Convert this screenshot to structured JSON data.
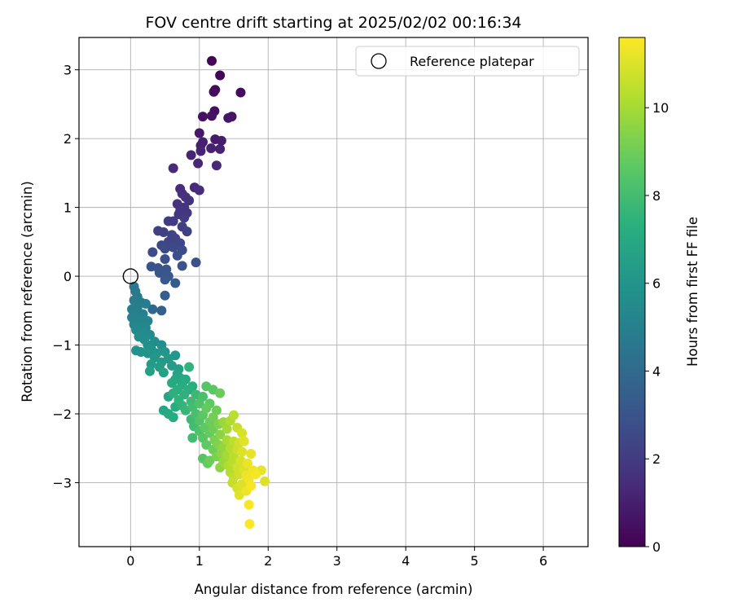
{
  "chart_data": {
    "type": "scatter",
    "title": "FOV centre drift starting at 2025/02/02 00:16:34",
    "xlabel": "Angular distance from reference (arcmin)",
    "ylabel": "Rotation from reference (arcmin)",
    "xlim": [
      -0.75,
      6.65
    ],
    "ylim": [
      -3.93,
      3.47
    ],
    "xticks": [
      0,
      1,
      2,
      3,
      4,
      5,
      6
    ],
    "yticks": [
      -3,
      -2,
      -1,
      0,
      1,
      2,
      3
    ],
    "grid": true,
    "legend": {
      "placement": "top-right",
      "entries": [
        "Reference platepar"
      ]
    },
    "reference_point": {
      "x": 0,
      "y": 0
    },
    "colorbar": {
      "label": "Hours from first FF file",
      "range": [
        0,
        11.6
      ],
      "ticks": [
        0,
        2,
        4,
        6,
        8,
        10
      ],
      "colormap": "viridis"
    },
    "points": [
      {
        "x": 1.18,
        "y": 3.13,
        "h": 0.1
      },
      {
        "x": 1.3,
        "y": 2.92,
        "h": 0.2
      },
      {
        "x": 1.23,
        "y": 2.71,
        "h": 0.3
      },
      {
        "x": 1.21,
        "y": 2.68,
        "h": 0.35
      },
      {
        "x": 1.6,
        "y": 2.67,
        "h": 0.4
      },
      {
        "x": 1.22,
        "y": 2.4,
        "h": 0.5
      },
      {
        "x": 1.05,
        "y": 2.32,
        "h": 0.55
      },
      {
        "x": 1.18,
        "y": 2.33,
        "h": 0.6
      },
      {
        "x": 1.47,
        "y": 2.32,
        "h": 0.65
      },
      {
        "x": 1.42,
        "y": 2.3,
        "h": 0.7
      },
      {
        "x": 1.0,
        "y": 2.08,
        "h": 0.8
      },
      {
        "x": 1.23,
        "y": 1.99,
        "h": 0.85
      },
      {
        "x": 1.32,
        "y": 1.97,
        "h": 0.9
      },
      {
        "x": 1.05,
        "y": 1.95,
        "h": 0.95
      },
      {
        "x": 1.02,
        "y": 1.9,
        "h": 1.0
      },
      {
        "x": 1.17,
        "y": 1.86,
        "h": 1.05
      },
      {
        "x": 1.3,
        "y": 1.85,
        "h": 1.1
      },
      {
        "x": 1.02,
        "y": 1.82,
        "h": 1.15
      },
      {
        "x": 0.88,
        "y": 1.76,
        "h": 1.2
      },
      {
        "x": 0.98,
        "y": 1.64,
        "h": 1.25
      },
      {
        "x": 1.25,
        "y": 1.61,
        "h": 1.3
      },
      {
        "x": 0.62,
        "y": 1.57,
        "h": 1.35
      },
      {
        "x": 0.93,
        "y": 1.29,
        "h": 1.4
      },
      {
        "x": 0.72,
        "y": 1.27,
        "h": 1.45
      },
      {
        "x": 1.0,
        "y": 1.25,
        "h": 1.5
      },
      {
        "x": 0.75,
        "y": 1.2,
        "h": 1.55
      },
      {
        "x": 0.8,
        "y": 1.15,
        "h": 1.6
      },
      {
        "x": 0.85,
        "y": 1.1,
        "h": 1.65
      },
      {
        "x": 0.68,
        "y": 1.05,
        "h": 1.7
      },
      {
        "x": 0.78,
        "y": 1.0,
        "h": 1.75
      },
      {
        "x": 0.72,
        "y": 0.95,
        "h": 1.8
      },
      {
        "x": 0.82,
        "y": 0.92,
        "h": 1.85
      },
      {
        "x": 0.7,
        "y": 0.9,
        "h": 1.9
      },
      {
        "x": 0.78,
        "y": 0.85,
        "h": 1.95
      },
      {
        "x": 0.62,
        "y": 0.8,
        "h": 2.0
      },
      {
        "x": 0.55,
        "y": 0.8,
        "h": 2.05
      },
      {
        "x": 0.75,
        "y": 0.72,
        "h": 2.1
      },
      {
        "x": 0.4,
        "y": 0.66,
        "h": 2.15
      },
      {
        "x": 0.48,
        "y": 0.64,
        "h": 2.2
      },
      {
        "x": 0.82,
        "y": 0.65,
        "h": 2.25
      },
      {
        "x": 0.6,
        "y": 0.6,
        "h": 2.3
      },
      {
        "x": 0.65,
        "y": 0.55,
        "h": 2.35
      },
      {
        "x": 0.55,
        "y": 0.5,
        "h": 2.4
      },
      {
        "x": 0.72,
        "y": 0.48,
        "h": 2.45
      },
      {
        "x": 0.45,
        "y": 0.45,
        "h": 2.5
      },
      {
        "x": 0.62,
        "y": 0.42,
        "h": 2.55
      },
      {
        "x": 0.5,
        "y": 0.4,
        "h": 2.6
      },
      {
        "x": 0.75,
        "y": 0.38,
        "h": 2.65
      },
      {
        "x": 0.32,
        "y": 0.35,
        "h": 2.7
      },
      {
        "x": 0.68,
        "y": 0.3,
        "h": 2.75
      },
      {
        "x": 0.5,
        "y": 0.25,
        "h": 2.8
      },
      {
        "x": 0.95,
        "y": 0.2,
        "h": 2.85
      },
      {
        "x": 0.75,
        "y": 0.15,
        "h": 2.9
      },
      {
        "x": 0.3,
        "y": 0.14,
        "h": 2.95
      },
      {
        "x": 0.4,
        "y": 0.12,
        "h": 3.0
      },
      {
        "x": 0.52,
        "y": 0.1,
        "h": 3.05
      },
      {
        "x": 0.42,
        "y": 0.05,
        "h": 3.1
      },
      {
        "x": 0.55,
        "y": 0.0,
        "h": 3.15
      },
      {
        "x": 0.5,
        "y": -0.05,
        "h": 3.2
      },
      {
        "x": 0.65,
        "y": -0.1,
        "h": 3.25
      },
      {
        "x": 0.05,
        "y": -0.15,
        "h": 4.6
      },
      {
        "x": 0.07,
        "y": -0.22,
        "h": 4.65
      },
      {
        "x": 0.5,
        "y": -0.28,
        "h": 3.4
      },
      {
        "x": 0.1,
        "y": -0.3,
        "h": 4.7
      },
      {
        "x": 0.05,
        "y": -0.35,
        "h": 4.75
      },
      {
        "x": 0.15,
        "y": -0.38,
        "h": 4.8
      },
      {
        "x": 0.22,
        "y": -0.4,
        "h": 4.85
      },
      {
        "x": 0.1,
        "y": -0.45,
        "h": 4.9
      },
      {
        "x": 0.02,
        "y": -0.48,
        "h": 4.95
      },
      {
        "x": 0.32,
        "y": -0.48,
        "h": 3.9
      },
      {
        "x": 0.45,
        "y": -0.5,
        "h": 3.6
      },
      {
        "x": 0.05,
        "y": -0.55,
        "h": 5.0
      },
      {
        "x": 0.18,
        "y": -0.55,
        "h": 5.05
      },
      {
        "x": 0.02,
        "y": -0.6,
        "h": 5.1
      },
      {
        "x": 0.12,
        "y": -0.62,
        "h": 5.15
      },
      {
        "x": 0.25,
        "y": -0.65,
        "h": 5.2
      },
      {
        "x": 0.05,
        "y": -0.7,
        "h": 5.25
      },
      {
        "x": 0.15,
        "y": -0.72,
        "h": 5.3
      },
      {
        "x": 0.22,
        "y": -0.75,
        "h": 5.35
      },
      {
        "x": 0.08,
        "y": -0.78,
        "h": 5.4
      },
      {
        "x": 0.18,
        "y": -0.82,
        "h": 5.45
      },
      {
        "x": 0.28,
        "y": -0.85,
        "h": 5.5
      },
      {
        "x": 0.12,
        "y": -0.88,
        "h": 5.55
      },
      {
        "x": 0.2,
        "y": -0.92,
        "h": 5.6
      },
      {
        "x": 0.35,
        "y": -0.95,
        "h": 5.65
      },
      {
        "x": 0.25,
        "y": -1.0,
        "h": 5.7
      },
      {
        "x": 0.45,
        "y": -1.0,
        "h": 5.75
      },
      {
        "x": 0.3,
        "y": -1.05,
        "h": 5.8
      },
      {
        "x": 0.08,
        "y": -1.08,
        "h": 5.85
      },
      {
        "x": 0.15,
        "y": -1.1,
        "h": 5.9
      },
      {
        "x": 0.25,
        "y": -1.12,
        "h": 5.95
      },
      {
        "x": 0.38,
        "y": -1.12,
        "h": 6.0
      },
      {
        "x": 0.5,
        "y": -1.1,
        "h": 6.05
      },
      {
        "x": 0.65,
        "y": -1.15,
        "h": 6.1
      },
      {
        "x": 0.35,
        "y": -1.18,
        "h": 6.15
      },
      {
        "x": 0.55,
        "y": -1.2,
        "h": 6.2
      },
      {
        "x": 0.45,
        "y": -1.25,
        "h": 6.25
      },
      {
        "x": 0.3,
        "y": -1.28,
        "h": 6.3
      },
      {
        "x": 0.6,
        "y": -1.3,
        "h": 6.35
      },
      {
        "x": 0.42,
        "y": -1.32,
        "h": 6.4
      },
      {
        "x": 0.85,
        "y": -1.32,
        "h": 7.5
      },
      {
        "x": 0.7,
        "y": -1.35,
        "h": 6.5
      },
      {
        "x": 0.28,
        "y": -1.38,
        "h": 6.55
      },
      {
        "x": 0.48,
        "y": -1.4,
        "h": 6.6
      },
      {
        "x": 0.68,
        "y": -1.42,
        "h": 6.7
      },
      {
        "x": 0.72,
        "y": -1.48,
        "h": 6.8
      },
      {
        "x": 0.65,
        "y": -1.5,
        "h": 6.9
      },
      {
        "x": 0.8,
        "y": -1.5,
        "h": 7.0
      },
      {
        "x": 0.6,
        "y": -1.55,
        "h": 7.05
      },
      {
        "x": 0.75,
        "y": -1.58,
        "h": 7.1
      },
      {
        "x": 0.9,
        "y": -1.6,
        "h": 7.2
      },
      {
        "x": 1.1,
        "y": -1.6,
        "h": 8.5
      },
      {
        "x": 0.68,
        "y": -1.65,
        "h": 7.25
      },
      {
        "x": 0.85,
        "y": -1.65,
        "h": 7.3
      },
      {
        "x": 1.2,
        "y": -1.65,
        "h": 8.6
      },
      {
        "x": 1.3,
        "y": -1.7,
        "h": 8.9
      },
      {
        "x": 0.62,
        "y": -1.7,
        "h": 7.35
      },
      {
        "x": 0.78,
        "y": -1.72,
        "h": 7.4
      },
      {
        "x": 0.95,
        "y": -1.72,
        "h": 7.8
      },
      {
        "x": 1.05,
        "y": -1.75,
        "h": 8.2
      },
      {
        "x": 0.55,
        "y": -1.75,
        "h": 6.8
      },
      {
        "x": 0.7,
        "y": -1.8,
        "h": 7.45
      },
      {
        "x": 0.88,
        "y": -1.82,
        "h": 7.9
      },
      {
        "x": 1.0,
        "y": -1.85,
        "h": 8.3
      },
      {
        "x": 1.15,
        "y": -1.85,
        "h": 8.7
      },
      {
        "x": 0.75,
        "y": -1.88,
        "h": 7.5
      },
      {
        "x": 0.65,
        "y": -1.9,
        "h": 7.2
      },
      {
        "x": 0.9,
        "y": -1.9,
        "h": 8.0
      },
      {
        "x": 1.1,
        "y": -1.92,
        "h": 8.8
      },
      {
        "x": 1.25,
        "y": -1.95,
        "h": 9.0
      },
      {
        "x": 0.48,
        "y": -1.95,
        "h": 6.9
      },
      {
        "x": 0.8,
        "y": -1.95,
        "h": 7.7
      },
      {
        "x": 0.55,
        "y": -2.0,
        "h": 7.0
      },
      {
        "x": 0.95,
        "y": -2.0,
        "h": 8.1
      },
      {
        "x": 1.05,
        "y": -2.02,
        "h": 8.6
      },
      {
        "x": 1.2,
        "y": -2.05,
        "h": 9.1
      },
      {
        "x": 1.5,
        "y": -2.02,
        "h": 10.4
      },
      {
        "x": 0.62,
        "y": -2.05,
        "h": 7.1
      },
      {
        "x": 0.88,
        "y": -2.08,
        "h": 7.9
      },
      {
        "x": 1.0,
        "y": -2.1,
        "h": 8.4
      },
      {
        "x": 1.15,
        "y": -2.12,
        "h": 8.9
      },
      {
        "x": 1.35,
        "y": -2.12,
        "h": 9.8
      },
      {
        "x": 1.45,
        "y": -2.1,
        "h": 10.2
      },
      {
        "x": 1.28,
        "y": -2.15,
        "h": 9.3
      },
      {
        "x": 0.92,
        "y": -2.18,
        "h": 8.0
      },
      {
        "x": 1.08,
        "y": -2.2,
        "h": 8.7
      },
      {
        "x": 1.2,
        "y": -2.22,
        "h": 9.0
      },
      {
        "x": 1.4,
        "y": -2.22,
        "h": 10.0
      },
      {
        "x": 1.55,
        "y": -2.2,
        "h": 10.6
      },
      {
        "x": 1.0,
        "y": -2.25,
        "h": 8.3
      },
      {
        "x": 1.15,
        "y": -2.28,
        "h": 8.8
      },
      {
        "x": 1.3,
        "y": -2.3,
        "h": 9.5
      },
      {
        "x": 1.62,
        "y": -2.28,
        "h": 10.9
      },
      {
        "x": 0.9,
        "y": -2.35,
        "h": 8.0
      },
      {
        "x": 1.05,
        "y": -2.35,
        "h": 8.5
      },
      {
        "x": 1.22,
        "y": -2.38,
        "h": 9.2
      },
      {
        "x": 1.4,
        "y": -2.38,
        "h": 10.1
      },
      {
        "x": 1.5,
        "y": -2.4,
        "h": 10.5
      },
      {
        "x": 1.58,
        "y": -2.42,
        "h": 10.8
      },
      {
        "x": 1.65,
        "y": -2.4,
        "h": 11.1
      },
      {
        "x": 1.1,
        "y": -2.45,
        "h": 8.7
      },
      {
        "x": 1.28,
        "y": -2.45,
        "h": 9.4
      },
      {
        "x": 1.35,
        "y": -2.48,
        "h": 9.7
      },
      {
        "x": 1.45,
        "y": -2.5,
        "h": 10.3
      },
      {
        "x": 1.2,
        "y": -2.52,
        "h": 9.0
      },
      {
        "x": 1.55,
        "y": -2.52,
        "h": 10.7
      },
      {
        "x": 1.62,
        "y": -2.55,
        "h": 11.0
      },
      {
        "x": 1.32,
        "y": -2.58,
        "h": 9.6
      },
      {
        "x": 1.4,
        "y": -2.6,
        "h": 10.0
      },
      {
        "x": 1.75,
        "y": -2.58,
        "h": 11.2
      },
      {
        "x": 1.5,
        "y": -2.62,
        "h": 10.4
      },
      {
        "x": 1.25,
        "y": -2.62,
        "h": 9.2
      },
      {
        "x": 1.05,
        "y": -2.65,
        "h": 8.5
      },
      {
        "x": 1.15,
        "y": -2.68,
        "h": 8.9
      },
      {
        "x": 1.35,
        "y": -2.7,
        "h": 9.8
      },
      {
        "x": 1.48,
        "y": -2.7,
        "h": 10.4
      },
      {
        "x": 1.6,
        "y": -2.68,
        "h": 10.9
      },
      {
        "x": 1.7,
        "y": -2.72,
        "h": 11.3
      },
      {
        "x": 1.12,
        "y": -2.72,
        "h": 8.8
      },
      {
        "x": 1.42,
        "y": -2.75,
        "h": 10.2
      },
      {
        "x": 1.55,
        "y": -2.78,
        "h": 10.8
      },
      {
        "x": 1.3,
        "y": -2.78,
        "h": 9.6
      },
      {
        "x": 1.65,
        "y": -2.8,
        "h": 11.0
      },
      {
        "x": 1.78,
        "y": -2.82,
        "h": 11.4
      },
      {
        "x": 1.9,
        "y": -2.82,
        "h": 11.2
      },
      {
        "x": 1.45,
        "y": -2.85,
        "h": 10.3
      },
      {
        "x": 1.58,
        "y": -2.88,
        "h": 10.8
      },
      {
        "x": 1.68,
        "y": -2.9,
        "h": 11.3
      },
      {
        "x": 1.82,
        "y": -2.88,
        "h": 11.5
      },
      {
        "x": 1.5,
        "y": -2.92,
        "h": 10.5
      },
      {
        "x": 1.72,
        "y": -2.95,
        "h": 11.4
      },
      {
        "x": 1.95,
        "y": -2.98,
        "h": 11.0
      },
      {
        "x": 1.48,
        "y": -3.0,
        "h": 10.6
      },
      {
        "x": 1.62,
        "y": -3.02,
        "h": 11.0
      },
      {
        "x": 1.75,
        "y": -3.05,
        "h": 11.5
      },
      {
        "x": 1.55,
        "y": -3.08,
        "h": 10.9
      },
      {
        "x": 1.68,
        "y": -3.12,
        "h": 11.3
      },
      {
        "x": 1.58,
        "y": -3.18,
        "h": 11.1
      },
      {
        "x": 1.72,
        "y": -3.32,
        "h": 11.5
      },
      {
        "x": 1.73,
        "y": -3.6,
        "h": 11.6
      }
    ]
  }
}
